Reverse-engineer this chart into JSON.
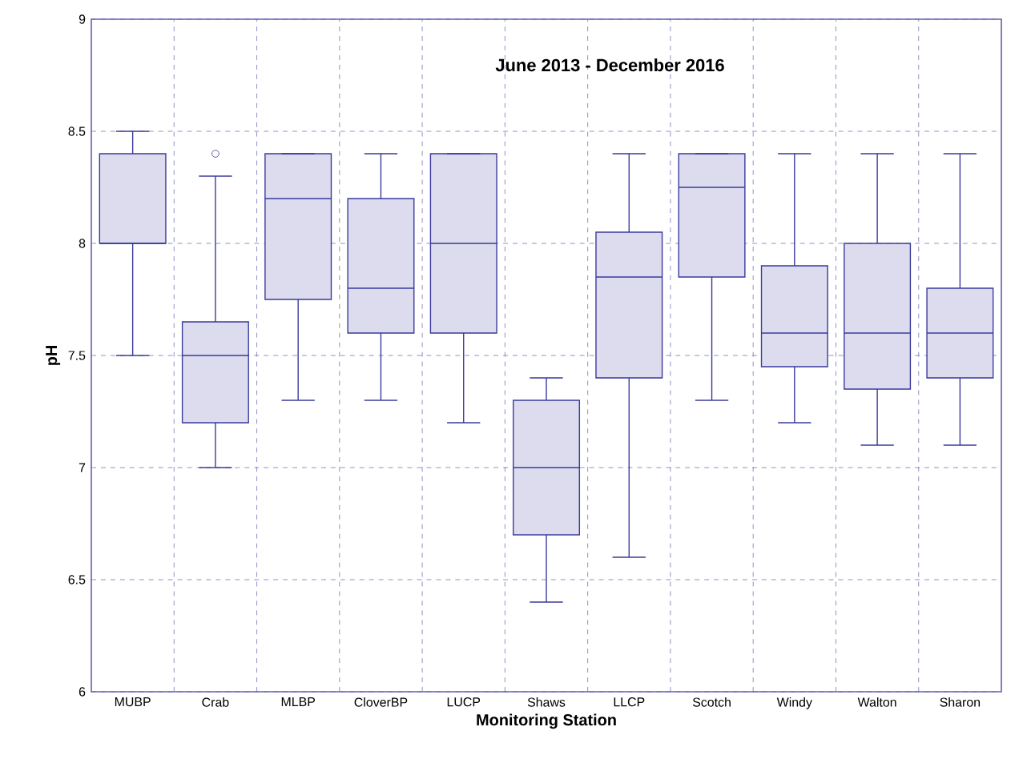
{
  "chart_data": {
    "type": "box",
    "title": "June 2013 - December 2016",
    "xlabel": "Monitoring Station",
    "ylabel": "pH",
    "categories": [
      "MUBP",
      "Crab",
      "MLBP",
      "CloverBP",
      "LUCP",
      "Shaws",
      "LLCP",
      "Scotch",
      "Windy",
      "Walton",
      "Sharon"
    ],
    "color": "#3a3a9e",
    "boxes": [
      {
        "low": 7.5,
        "q1": 8.0,
        "median": 8.0,
        "q3": 8.4,
        "high": 8.5
      },
      {
        "low": 7.0,
        "q1": 7.2,
        "median": 7.5,
        "q3": 7.65,
        "high": 8.3,
        "outliers": [
          8.4
        ]
      },
      {
        "low": 7.3,
        "q1": 7.75,
        "median": 8.2,
        "q3": 8.4,
        "high": 8.4
      },
      {
        "low": 7.3,
        "q1": 7.6,
        "median": 7.8,
        "q3": 8.2,
        "high": 8.4
      },
      {
        "low": 7.2,
        "q1": 7.6,
        "median": 8.0,
        "q3": 8.4,
        "high": 8.4
      },
      {
        "low": 6.4,
        "q1": 6.7,
        "median": 7.0,
        "q3": 7.3,
        "high": 7.4
      },
      {
        "low": 6.6,
        "q1": 7.4,
        "median": 7.85,
        "q3": 8.05,
        "high": 8.4
      },
      {
        "low": 7.3,
        "q1": 7.85,
        "median": 8.25,
        "q3": 8.4,
        "high": 8.4
      },
      {
        "low": 7.2,
        "q1": 7.45,
        "median": 7.6,
        "q3": 7.9,
        "high": 8.4
      },
      {
        "low": 7.1,
        "q1": 7.35,
        "median": 7.6,
        "q3": 8.0,
        "high": 8.4
      },
      {
        "low": 7.1,
        "q1": 7.4,
        "median": 7.6,
        "q3": 7.8,
        "high": 8.4
      }
    ],
    "ylim": [
      6,
      9
    ],
    "yticks": [
      6,
      6.5,
      7,
      7.5,
      8,
      8.5,
      9
    ],
    "grid": true
  }
}
